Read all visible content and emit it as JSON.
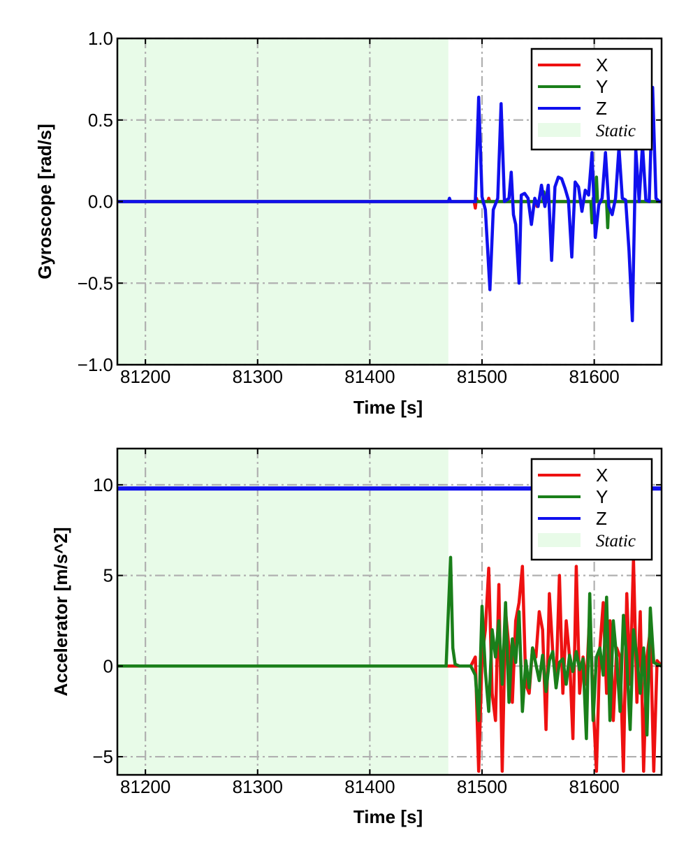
{
  "chart_data": [
    {
      "type": "line",
      "xlabel": "Time [s]",
      "ylabel": "Gyroscope [rad/s]",
      "xlim": [
        81175,
        81660
      ],
      "ylim": [
        -1.0,
        1.0
      ],
      "xticks": [
        81200,
        81300,
        81400,
        81500,
        81600
      ],
      "xtick_labels": [
        "81200",
        "81300",
        "81400",
        "81500",
        "81600"
      ],
      "yticks": [
        1.0,
        0.5,
        0.0,
        -0.5,
        -1.0
      ],
      "ytick_labels": [
        "1.0",
        "0.5",
        "0.0",
        "−0.5",
        "−1.0"
      ],
      "grid": true,
      "legend_position": "top-right",
      "static_region": {
        "label": "Static",
        "x_start": 81175,
        "x_end": 81470,
        "color": "#e8fbe8"
      },
      "series": [
        {
          "name": "X",
          "color": "#ee1111",
          "x": [
            81175,
            81470,
            81493,
            81494,
            81495,
            81496,
            81505,
            81506,
            81507,
            81520,
            81548,
            81549,
            81550,
            81660
          ],
          "y": [
            0,
            0,
            0,
            -0.04,
            0.02,
            0,
            0,
            0.02,
            0,
            0,
            0,
            -0.03,
            0,
            0
          ]
        },
        {
          "name": "Y",
          "color": "#1a7f1a",
          "x": [
            81175,
            81470,
            81554,
            81555,
            81556,
            81597,
            81598,
            81599,
            81601,
            81602,
            81603,
            81611,
            81612,
            81613,
            81660
          ],
          "y": [
            0,
            0,
            0,
            0.06,
            0,
            0,
            -0.13,
            0.02,
            0,
            0.15,
            0,
            0,
            -0.16,
            0,
            0
          ]
        },
        {
          "name": "Z",
          "color": "#1010ee",
          "x": [
            81175,
            81470,
            81471,
            81472,
            81475,
            81494,
            81497,
            81500,
            81503,
            81507,
            81510,
            81514,
            81517,
            81520,
            81524,
            81526,
            81528,
            81530,
            81533,
            81535,
            81538,
            81541,
            81544,
            81547,
            81550,
            81553,
            81556,
            81559,
            81562,
            81565,
            81568,
            81571,
            81574,
            81577,
            81580,
            81583,
            81586,
            81589,
            81592,
            81595,
            81598,
            81601,
            81604,
            81607,
            81610,
            81613,
            81616,
            81619,
            81622,
            81625,
            81628,
            81631,
            81634,
            81637,
            81640,
            81643,
            81646,
            81649,
            81652,
            81655,
            81658,
            81660
          ],
          "y": [
            0,
            0,
            0.02,
            0,
            0,
            0,
            0.64,
            0.03,
            -0.05,
            -0.54,
            -0.05,
            0.02,
            0.6,
            0,
            0.02,
            0.18,
            -0.08,
            -0.14,
            -0.5,
            0.04,
            0.05,
            0.02,
            -0.14,
            0.02,
            -0.03,
            0.1,
            -0.03,
            0.1,
            -0.36,
            0.09,
            0.15,
            0.14,
            0.08,
            0.01,
            -0.34,
            0.12,
            0.09,
            -0.06,
            0.07,
            0.04,
            0.3,
            -0.22,
            -0.02,
            0.02,
            0.3,
            -0.03,
            -0.08,
            0.02,
            0.33,
            0.02,
            0.01,
            -0.3,
            -0.73,
            0.32,
            0.0,
            0.35,
            0.01,
            0.0,
            0.7,
            0.02,
            0.0,
            0
          ]
        }
      ]
    },
    {
      "type": "line",
      "xlabel": "Time [s]",
      "ylabel": "Accelerator [m/s^2]",
      "xlim": [
        81175,
        81660
      ],
      "ylim": [
        -6.0,
        12.0
      ],
      "xticks": [
        81200,
        81300,
        81400,
        81500,
        81600
      ],
      "xtick_labels": [
        "81200",
        "81300",
        "81400",
        "81500",
        "81600"
      ],
      "yticks": [
        10,
        5,
        0,
        -5
      ],
      "ytick_labels": [
        "10",
        "5",
        "0",
        "−5"
      ],
      "grid": true,
      "legend_position": "top-right",
      "static_region": {
        "label": "Static",
        "x_start": 81175,
        "x_end": 81470,
        "color": "#e8fbe8"
      },
      "series": [
        {
          "name": "X",
          "color": "#ee1111",
          "x": [
            81175,
            81470,
            81490,
            81494,
            81497,
            81500,
            81503,
            81506,
            81509,
            81512,
            81515,
            81518,
            81521,
            81524,
            81527,
            81530,
            81533,
            81536,
            81539,
            81542,
            81545,
            81548,
            81551,
            81554,
            81557,
            81560,
            81563,
            81566,
            81569,
            81572,
            81575,
            81578,
            81581,
            81584,
            81587,
            81590,
            81593,
            81596,
            81599,
            81602,
            81605,
            81608,
            81611,
            81614,
            81617,
            81620,
            81623,
            81626,
            81629,
            81632,
            81635,
            81638,
            81641,
            81644,
            81647,
            81650,
            81653,
            81656,
            81660
          ],
          "y": [
            0,
            0,
            0,
            0.5,
            -5.8,
            0.5,
            2.0,
            5.4,
            -1.5,
            -3.0,
            4.5,
            -5.8,
            3.0,
            1.0,
            -2.0,
            2.5,
            3.5,
            5.5,
            -1.0,
            -1.5,
            1.0,
            0.5,
            3.0,
            2.0,
            -3.5,
            4.0,
            0.8,
            -1.0,
            5.0,
            -1.5,
            2.5,
            0.5,
            -4.0,
            5.5,
            -1.5,
            0.5,
            -1.0,
            3.0,
            -2.0,
            -5.8,
            1.0,
            3.5,
            -1.5,
            2.5,
            -3.0,
            1.0,
            0.5,
            -5.8,
            4.0,
            -1.0,
            5.9,
            -2.0,
            3.0,
            -5.8,
            0.5,
            2.0,
            -5.8,
            0.3,
            0
          ]
        },
        {
          "name": "Y",
          "color": "#1a7f1a",
          "x": [
            81175,
            81468,
            81470,
            81472,
            81474,
            81476,
            81480,
            81490,
            81494,
            81497,
            81500,
            81503,
            81506,
            81509,
            81512,
            81515,
            81518,
            81521,
            81524,
            81527,
            81530,
            81533,
            81536,
            81539,
            81542,
            81545,
            81548,
            81551,
            81554,
            81557,
            81560,
            81563,
            81566,
            81569,
            81572,
            81575,
            81578,
            81581,
            81584,
            81587,
            81590,
            81593,
            81596,
            81599,
            81602,
            81605,
            81608,
            81611,
            81614,
            81617,
            81620,
            81623,
            81626,
            81629,
            81632,
            81635,
            81638,
            81641,
            81644,
            81647,
            81650,
            81653,
            81656,
            81660
          ],
          "y": [
            0,
            0,
            3.0,
            6.0,
            1.0,
            0.1,
            0.0,
            0.0,
            -0.5,
            -3.0,
            3.3,
            -0.3,
            -2.5,
            2.0,
            0.5,
            2.5,
            -1.0,
            3.5,
            -2.0,
            1.5,
            0.2,
            3.0,
            -2.5,
            0.3,
            -1.2,
            1.0,
            0.1,
            -0.8,
            0.6,
            -1.4,
            0.3,
            0.8,
            -1.2,
            0.2,
            0.4,
            -1.0,
            0.6,
            -0.3,
            0.8,
            -0.2,
            0.4,
            -4.0,
            4.0,
            -3.0,
            0.5,
            1.0,
            -0.5,
            3.8,
            -3.0,
            2.5,
            0.4,
            -2.5,
            2.8,
            0.3,
            -3.5,
            2.0,
            0.5,
            -1.5,
            1.0,
            -3.8,
            3.2,
            0.2,
            0.1,
            0
          ]
        },
        {
          "name": "Z",
          "color": "#1010ee",
          "x": [
            81175,
            81660
          ],
          "y": [
            9.8,
            9.8
          ]
        }
      ]
    }
  ]
}
